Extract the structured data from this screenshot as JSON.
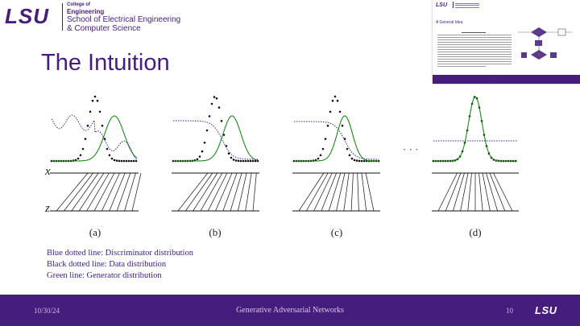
{
  "header": {
    "logo_text": "LSU",
    "college_line": "College of",
    "engineering_line": "Engineering",
    "school_line1": "School of Electrical Engineering",
    "school_line2": "& Computer Science"
  },
  "slide": {
    "title": "The Intuition"
  },
  "thumbnail": {
    "logo_text": "LSU",
    "title": "A General Idea"
  },
  "figure": {
    "panel_labels": [
      "(a)",
      "(b)",
      "(c)",
      "(d)"
    ],
    "axis_x": "x",
    "axis_z": "z",
    "ellipsis": "· · ·",
    "colors": {
      "data": "#111111",
      "discriminator": "#2b2b9e",
      "generator": "#1a8a1a"
    }
  },
  "caption": {
    "line1": "Blue dotted line: Discriminator distribution",
    "line2": "Black dotted line: Data distribution",
    "line3": "Green line: Generator distribution"
  },
  "footer": {
    "date": "10/30/24",
    "title": "Generative Adversarial Networks",
    "page": "10",
    "logo_text": "LSU"
  }
}
